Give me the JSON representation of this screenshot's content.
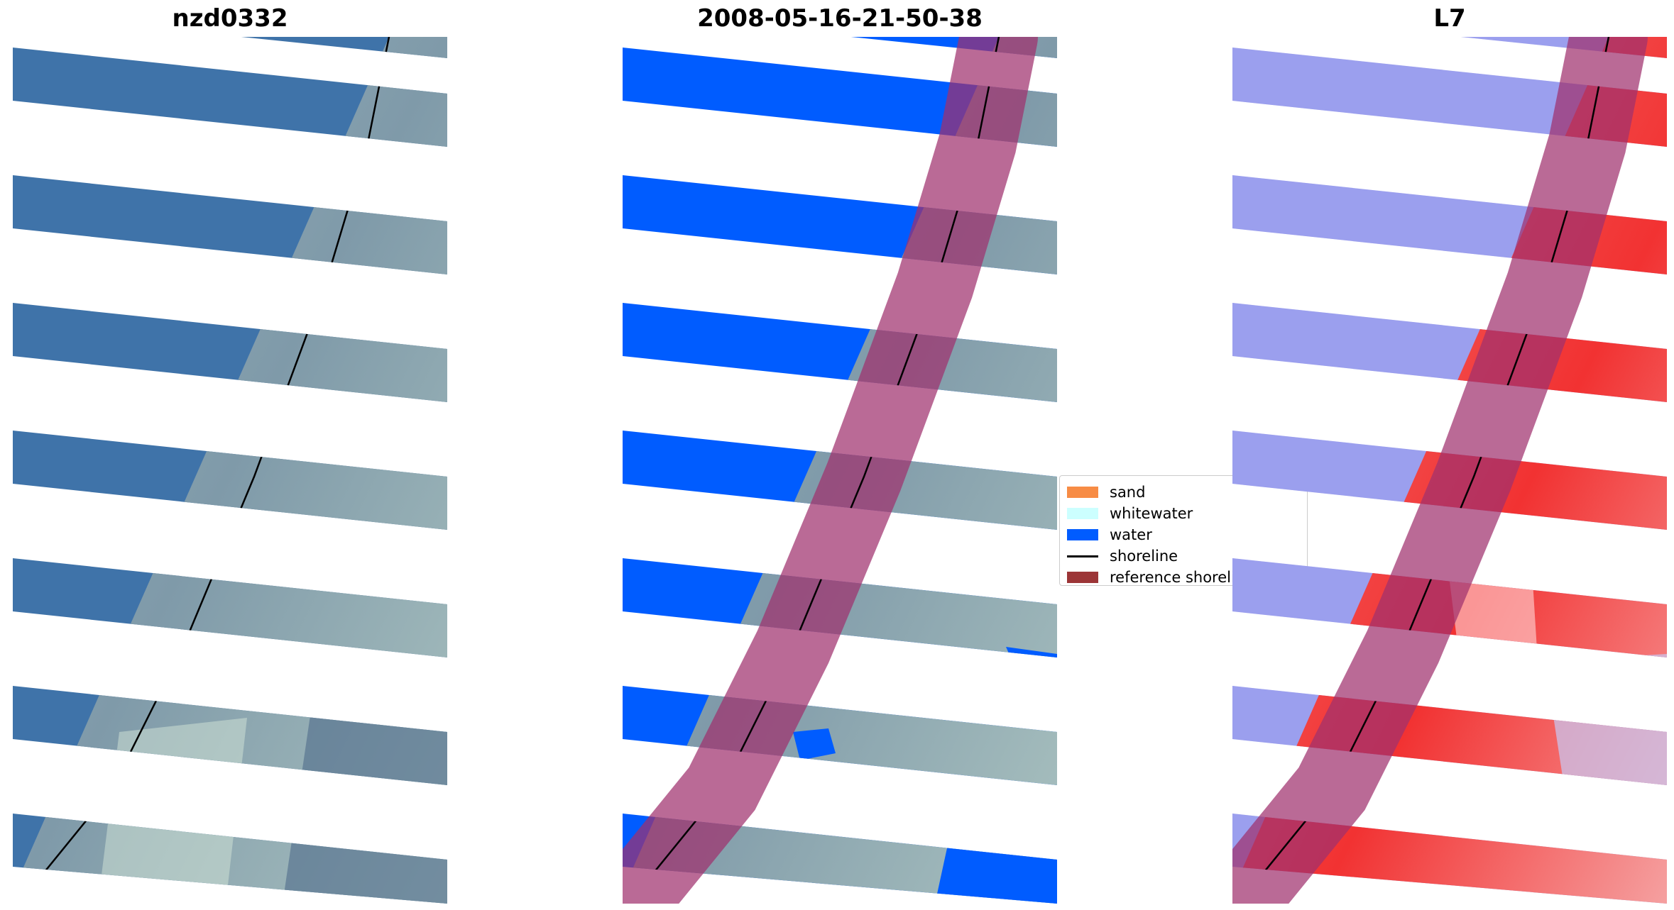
{
  "panels": [
    {
      "title": "nzd0332",
      "view": "rgb"
    },
    {
      "title": "2008-05-16-21-50-38",
      "view": "classification"
    },
    {
      "title": "L7",
      "view": "index"
    }
  ],
  "legend": {
    "items": [
      {
        "label": "sand",
        "color": "#f78c45",
        "kind": "patch"
      },
      {
        "label": "whitewater",
        "color": "#ccffff",
        "kind": "patch"
      },
      {
        "label": "water",
        "color": "#005cff",
        "kind": "patch"
      },
      {
        "label": "shoreline",
        "color": "#000000",
        "kind": "line"
      },
      {
        "label": "reference shoreline buffer",
        "color": "#9c3537",
        "kind": "patch"
      }
    ]
  },
  "colors": {
    "sea_rgb": "#3f73a9",
    "land_rgb": "#8fa6b4",
    "water_class": "#005cff",
    "buffer": "#a0306e",
    "index_water": "#6f74e6",
    "index_land": "#f23232"
  }
}
